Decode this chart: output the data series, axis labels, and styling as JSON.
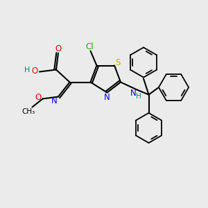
{
  "bg_color": "#ebebeb",
  "colors": {
    "N": "#0000ff",
    "O": "#ff0000",
    "S": "#ccaa00",
    "Cl": "#00bb00",
    "H": "#008080",
    "C": "#000000"
  }
}
